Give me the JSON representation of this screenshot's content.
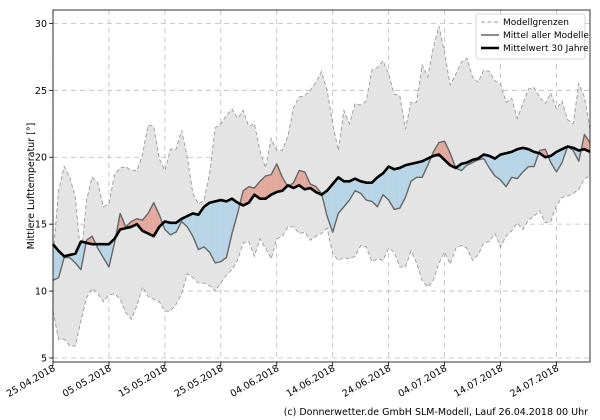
{
  "chart_data": {
    "type": "line",
    "ylabel": "Mittlere Lufttemperatur [°]",
    "xlabel": "",
    "ylim": [
      4.7,
      31
    ],
    "y_ticks": [
      5,
      10,
      15,
      20,
      25,
      30
    ],
    "x_range_days": [
      0,
      96
    ],
    "x_tick_days": [
      0,
      10,
      20,
      30,
      40,
      50,
      60,
      70,
      80,
      90
    ],
    "x_tick_labels": [
      "25.04.2018",
      "05.05.2018",
      "15.05.2018",
      "25.05.2018",
      "04.06.2018",
      "14.06.2018",
      "24.06.2018",
      "04.07.2018",
      "14.07.2018",
      "24.07.2018"
    ],
    "grid": true,
    "legend_position": "top-right",
    "legend": [
      "Modellgrenzen",
      "Mittel aller Modelle",
      "Mittelwert 30 Jahre"
    ],
    "series": [
      {
        "name": "Modellgrenzen (oben)",
        "values": [
          12.5,
          17.5,
          19.3,
          18.5,
          17,
          12.5,
          16.8,
          18.5,
          18.1,
          16.3,
          16.5,
          18.7,
          19.2,
          19.3,
          19,
          19,
          20.2,
          22.4,
          22.3,
          19.9,
          19,
          20.6,
          20.6,
          22,
          20,
          17.3,
          16.5,
          16.8,
          18.8,
          22.2,
          22.5,
          23.1,
          23.6,
          22.9,
          23.5,
          22.3,
          22.5,
          20.5,
          19.2,
          21.4,
          20.5,
          20.5,
          21.6,
          23.7,
          24.5,
          24.6,
          25,
          25.6,
          26.4,
          25,
          22.5,
          20.5,
          23.5,
          22.5,
          24,
          23.9,
          24.2,
          26.5,
          26.7,
          27.2,
          26.2,
          24.7,
          24.6,
          22.1,
          24.1,
          24.1,
          26.9,
          26,
          28.2,
          29.8,
          27.8,
          25.4,
          26.2,
          27.1,
          27.4,
          26,
          25.6,
          26.5,
          26.4,
          25.7,
          25.5,
          24.1,
          24.4,
          22.9,
          24,
          25.1,
          25.2,
          24.5,
          24,
          24.8,
          23.6,
          24.2,
          22.8,
          22.5,
          25.5,
          24.5,
          22.1
        ]
      },
      {
        "name": "Modellgrenzen (unten)",
        "values": [
          8.5,
          6.4,
          6.4,
          5.9,
          5.9,
          7.8,
          9.5,
          10.2,
          9.8,
          9.2,
          9.7,
          9.8,
          9.4,
          8.4,
          7.9,
          8.9,
          10.3,
          9.6,
          9.4,
          9.2,
          8.5,
          8.5,
          9,
          9.8,
          11.3,
          11,
          10.6,
          10.6,
          10.4,
          10,
          10.6,
          11.2,
          11.6,
          12.3,
          13.6,
          13.7,
          12.6,
          13.9,
          13.2,
          12.4,
          13.9,
          14.1,
          14.8,
          14.8,
          14.3,
          14.4,
          13.8,
          14.1,
          14.3,
          14.7,
          12.8,
          12.3,
          12.5,
          12.4,
          12.6,
          13.4,
          13.3,
          12.2,
          12.4,
          12.3,
          13.2,
          12.9,
          11.8,
          11.8,
          13,
          12.1,
          10.8,
          10.3,
          10.8,
          12.1,
          12.9,
          12,
          13.2,
          13.4,
          13.2,
          12.3,
          12.7,
          13.6,
          13.7,
          14.3,
          13.3,
          14.1,
          14.5,
          15.1,
          14.6,
          15.3,
          15.6,
          16,
          15.1,
          15.2,
          16.4,
          17,
          17.1,
          17.3,
          17.6,
          18.4,
          18.6
        ]
      },
      {
        "name": "Mittel aller Modelle",
        "values": [
          10.8,
          11,
          12.5,
          12.5,
          12.1,
          11.6,
          13.8,
          14.1,
          13.2,
          12.5,
          11.8,
          13.6,
          15.8,
          14.8,
          15.2,
          15.4,
          15.3,
          15.8,
          16.6,
          15.7,
          14.6,
          14.2,
          14.4,
          15.2,
          14.8,
          14.1,
          13.1,
          13.3,
          12.9,
          12.1,
          12.2,
          12.5,
          14.3,
          15.8,
          17.5,
          17.8,
          17.7,
          18.2,
          18.6,
          18.7,
          19.5,
          18.5,
          17.8,
          18.1,
          19,
          18.9,
          18,
          17.8,
          17.3,
          15.6,
          14.4,
          15.8,
          16.3,
          16.8,
          17.5,
          17.3,
          16.8,
          16.7,
          16.3,
          17.2,
          16.8,
          16.1,
          16.2,
          17,
          18.2,
          18.5,
          18.5,
          19.4,
          20.4,
          21.1,
          21.2,
          20.3,
          19.2,
          19,
          19.4,
          19.6,
          19.8,
          19.9,
          19.2,
          18.6,
          18.3,
          17.8,
          18.5,
          18.4,
          18.9,
          19.3,
          19.3,
          20.5,
          20.6,
          19.6,
          18.9,
          19.6,
          20.8,
          20.5,
          19.7,
          21.7,
          21.1
        ]
      },
      {
        "name": "Mittelwert 30 Jahre",
        "values": [
          13.5,
          13,
          12.6,
          12.7,
          12.8,
          13.7,
          13.6,
          13.5,
          13.5,
          13.5,
          13.5,
          13.9,
          14.6,
          14.7,
          14.8,
          15,
          14.5,
          14.3,
          14.1,
          14.8,
          15.2,
          15.1,
          15.1,
          15.4,
          15.6,
          15.8,
          15.7,
          16.3,
          16.6,
          16.7,
          16.8,
          16.7,
          16.9,
          16.6,
          16.4,
          16.6,
          17.2,
          16.9,
          16.9,
          17.2,
          17.4,
          17.5,
          17.9,
          17.7,
          17.9,
          17.6,
          17.7,
          17.4,
          17.2,
          17.5,
          18,
          18.5,
          18.2,
          18.2,
          18.4,
          18.2,
          18.1,
          18.1,
          18.5,
          18.8,
          19.3,
          19.1,
          19.2,
          19.4,
          19.5,
          19.6,
          19.7,
          19.9,
          20.1,
          20.2,
          19.8,
          19.4,
          19.2,
          19.5,
          19.6,
          19.8,
          19.9,
          20.2,
          20.1,
          19.9,
          20.2,
          20.3,
          20.4,
          20.6,
          20.7,
          20.6,
          20.4,
          20.3,
          20,
          20.1,
          20.4,
          20.6,
          20.8,
          20.7,
          20.5,
          20.6,
          20.4
        ]
      }
    ]
  },
  "credit": "(c) Donnerwetter.de GmbH SLM-Modell, Lauf 26.04.2018 00 Uhr",
  "colors": {
    "band": "#e4e4e4",
    "band_edge": "#9a9a9a",
    "model_mean": "#666666",
    "clim": "#000000",
    "below": "#b7d5e6",
    "above": "#e3a99c",
    "grid": "#bbbbbb"
  }
}
